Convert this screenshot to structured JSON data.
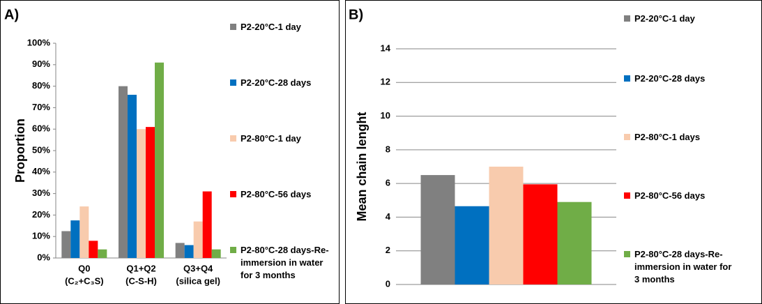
{
  "chart_data": [
    {
      "type": "bar",
      "panel_label": "A)",
      "y_label": "Proportion",
      "categories": [
        [
          "Q0",
          "(C₂+C₃S)"
        ],
        [
          "Q1+Q2",
          "(C-S-H)"
        ],
        [
          "Q3+Q4",
          "(silica gel)"
        ]
      ],
      "ylim": [
        0,
        100
      ],
      "yticks": [
        {
          "value": 0,
          "label": "0%"
        },
        {
          "value": 10,
          "label": "10%"
        },
        {
          "value": 20,
          "label": "20%"
        },
        {
          "value": 30,
          "label": "30%"
        },
        {
          "value": 40,
          "label": "40%"
        },
        {
          "value": 50,
          "label": "50%"
        },
        {
          "value": 60,
          "label": "60%"
        },
        {
          "value": 70,
          "label": "70%"
        },
        {
          "value": 80,
          "label": "80%"
        },
        {
          "value": 90,
          "label": "90%"
        },
        {
          "value": 100,
          "label": "100%"
        }
      ],
      "grid": false,
      "series": [
        {
          "name": "P2-20°C-1 day",
          "color": "#808080",
          "values": [
            12.5,
            80,
            7
          ]
        },
        {
          "name": "P2-20°C-28 days",
          "color": "#0070c0",
          "values": [
            17.5,
            76,
            6
          ]
        },
        {
          "name": "P2-80°C-1 day",
          "color": "#f8cbad",
          "values": [
            24,
            60,
            17
          ]
        },
        {
          "name": "P2-80°C-56 days",
          "color": "#ff0000",
          "values": [
            8,
            61,
            31
          ]
        },
        {
          "name": "P2-80°C-28 days-Re-immersion in water for 3 months",
          "color": "#70ad47",
          "values": [
            4,
            91,
            4
          ]
        }
      ]
    },
    {
      "type": "bar",
      "panel_label": "B)",
      "y_label": "Mean chain lenght",
      "categories": [
        null
      ],
      "ylim": [
        0,
        14
      ],
      "yticks": [
        0,
        2,
        4,
        6,
        8,
        10,
        12,
        14
      ],
      "grid": true,
      "series": [
        {
          "name": "P2-20°C-1 day",
          "color": "#808080",
          "values": [
            6.5
          ]
        },
        {
          "name": "P2-20°C-28 days",
          "color": "#0070c0",
          "values": [
            4.65
          ]
        },
        {
          "name": "P2-80°C-1 days",
          "color": "#f8cbad",
          "values": [
            7.0
          ]
        },
        {
          "name": "P2-80°C-56 days",
          "color": "#ff0000",
          "values": [
            5.95
          ]
        },
        {
          "name": "P2-80°C-28 days-Re-immersion in water for 3 months",
          "color": "#70ad47",
          "values": [
            4.9
          ]
        }
      ]
    }
  ]
}
